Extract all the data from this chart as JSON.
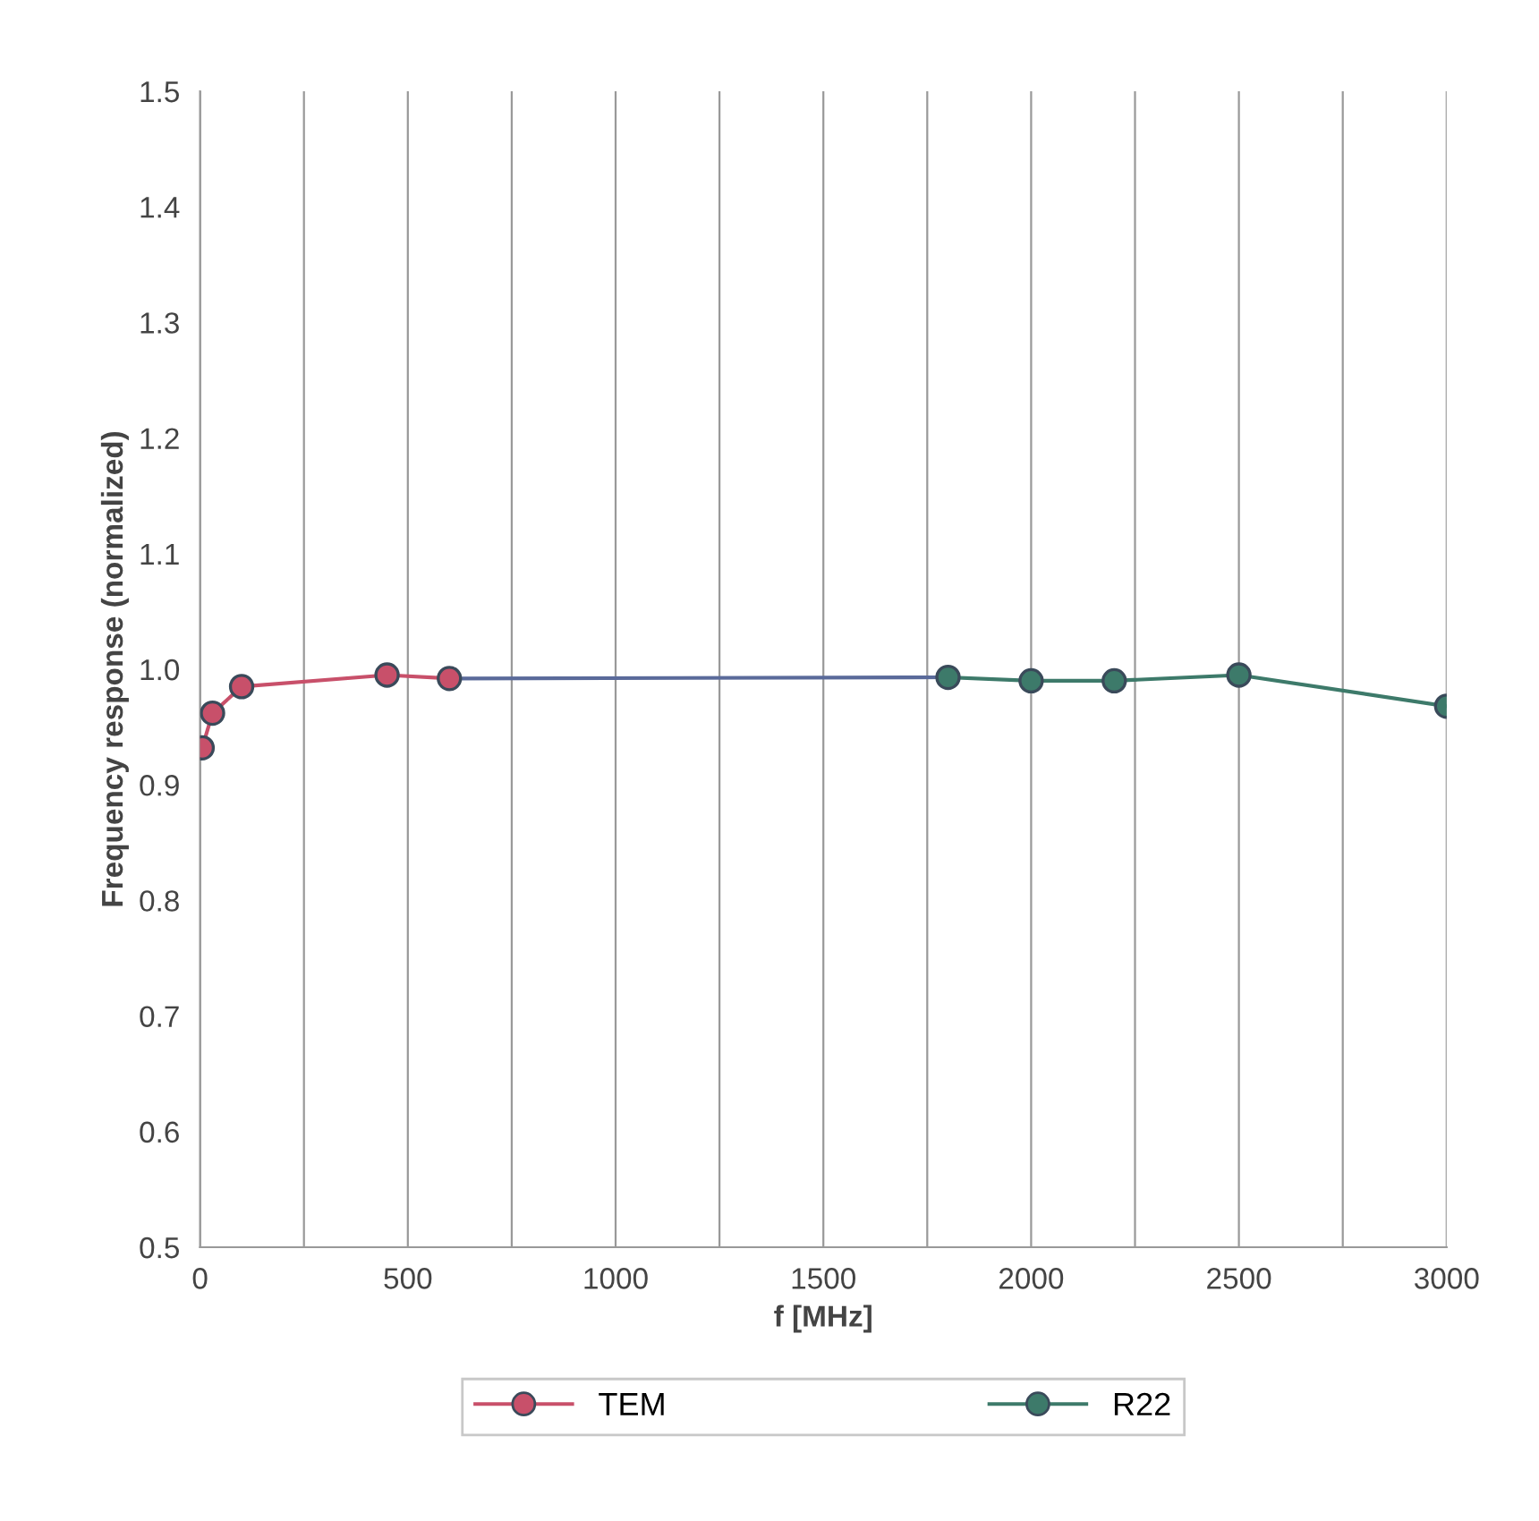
{
  "chart_data": {
    "type": "line",
    "xlabel": "f [MHz]",
    "ylabel": "Frequency response (normalized)",
    "series": [
      {
        "name": "TEM",
        "color": "#c8506a",
        "x": [
          5,
          30,
          100,
          450,
          600
        ],
        "values": [
          0.932,
          0.962,
          0.985,
          0.995,
          0.992
        ]
      },
      {
        "type": "line",
        "marker": "none",
        "color": "#5a6a9a",
        "x": [
          600,
          1800
        ],
        "values": [
          0.992,
          0.993
        ]
      },
      {
        "name": "R22",
        "color": "#3d7a6a",
        "x": [
          1800,
          2000,
          2200,
          2500,
          3000
        ],
        "values": [
          0.993,
          0.99,
          0.99,
          0.995,
          0.968
        ]
      }
    ],
    "xlim": [
      0,
      3000
    ],
    "ylim": [
      0.5,
      1.5
    ],
    "xticks": [
      0,
      {
        "value": 250,
        "label": null
      },
      500,
      {
        "value": 750,
        "label": null
      },
      1000,
      {
        "value": 1250,
        "label": null
      },
      1500,
      {
        "value": 1750,
        "label": null
      },
      2000,
      {
        "value": 2250,
        "label": null
      },
      2500,
      {
        "value": 2750,
        "label": null
      },
      3000
    ],
    "yticks": [
      {
        "value": 0.5,
        "label": "0.5"
      },
      {
        "value": 0.6,
        "label": "0.6"
      },
      {
        "value": 0.7,
        "label": "0.7"
      },
      {
        "value": 0.8,
        "label": "0.8"
      },
      {
        "value": 0.9,
        "label": "0.9"
      },
      {
        "value": 1.0,
        "label": "1.0"
      },
      {
        "value": 1.1,
        "label": "1.1"
      },
      {
        "value": 1.2,
        "label": "1.2"
      },
      {
        "value": 1.3,
        "label": "1.3"
      },
      {
        "value": 1.4,
        "label": "1.4"
      },
      {
        "value": 1.5,
        "label": "1.5"
      }
    ],
    "grid": "x",
    "marker": "circle",
    "legend": "bottom"
  }
}
